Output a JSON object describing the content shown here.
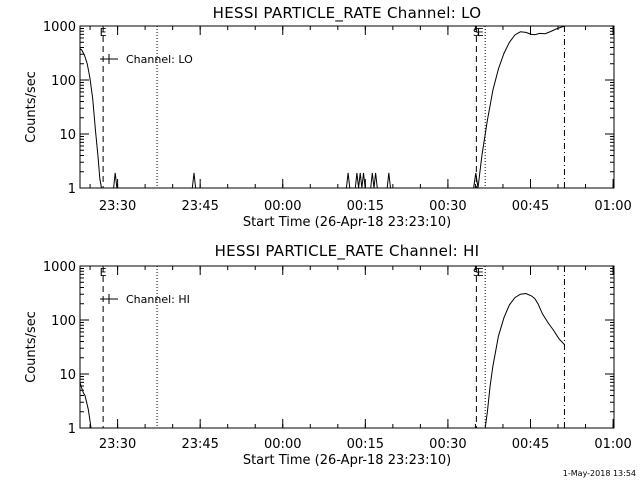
{
  "footer": {
    "timestamp": "1-May-2018 13:54"
  },
  "chart_data": [
    {
      "type": "line",
      "title": "HESSI PARTICLE_RATE Channel: LO",
      "xlabel": "Start Time (26-Apr-18 23:23:10)",
      "ylabel": "Counts/sec",
      "x_unit": "minutes after 23:23:10",
      "xlim": [
        0,
        97
      ],
      "ylim": [
        1,
        1000
      ],
      "y_scale": "log",
      "x_ticks": [
        {
          "x": 6.83,
          "label": "23:30"
        },
        {
          "x": 21.83,
          "label": "23:45"
        },
        {
          "x": 36.83,
          "label": "00:00"
        },
        {
          "x": 51.83,
          "label": "00:15"
        },
        {
          "x": 66.83,
          "label": "00:30"
        },
        {
          "x": 81.83,
          "label": "00:45"
        },
        {
          "x": 96.83,
          "label": "01:00"
        }
      ],
      "y_ticks": [
        {
          "y": 1,
          "label": "1"
        },
        {
          "y": 10,
          "label": "10"
        },
        {
          "y": 100,
          "label": "100"
        },
        {
          "y": 1000,
          "label": "1000"
        }
      ],
      "legend": {
        "label": "Channel: LO",
        "placement": "top-left"
      },
      "markers": [
        {
          "x": 4.2,
          "style": "dashed",
          "label": "E"
        },
        {
          "x": 14.0,
          "style": "dotted",
          "label": ""
        },
        {
          "x": 72.0,
          "style": "dashed",
          "label": "S"
        },
        {
          "x": 73.6,
          "style": "dotted",
          "label": "E"
        },
        {
          "x": 88.0,
          "style": "dashdot",
          "label": ""
        }
      ],
      "series": [
        {
          "x": [
            0,
            0.3,
            0.8,
            1.3,
            1.8,
            2.3,
            2.8,
            3.3,
            3.6,
            3.9
          ],
          "y": [
            380,
            360,
            290,
            200,
            110,
            45,
            12,
            3.5,
            1.5,
            1
          ]
        },
        {
          "x": [
            6.1,
            6.4,
            6.7
          ],
          "y": [
            1,
            1.9,
            1
          ]
        },
        {
          "x": [
            20.4,
            20.7,
            21.0
          ],
          "y": [
            1,
            1.9,
            1
          ]
        },
        {
          "x": [
            48.4,
            48.7,
            49.0
          ],
          "y": [
            1,
            1.9,
            1
          ]
        },
        {
          "x": [
            50.0,
            50.3,
            50.6,
            50.9,
            51.2,
            51.5,
            51.8
          ],
          "y": [
            1,
            1.9,
            1,
            1.9,
            1,
            1.9,
            1
          ]
        },
        {
          "x": [
            52.8,
            53.1,
            53.4,
            53.7,
            54.0
          ],
          "y": [
            1,
            1.9,
            1,
            1.9,
            1
          ]
        },
        {
          "x": [
            55.8,
            56.1,
            56.4
          ],
          "y": [
            1,
            1.9,
            1
          ]
        },
        {
          "x": [
            71.5,
            71.9,
            72.3
          ],
          "y": [
            1,
            1.9,
            1
          ]
        },
        {
          "x": [
            72.3,
            73.0,
            74.0,
            75.0,
            76.0,
            77.0,
            78.0,
            79.0,
            80.0,
            81.0,
            82.0,
            82.6,
            83.5,
            84.5,
            85.5,
            86.5,
            87.5,
            88.2
          ],
          "y": [
            1,
            4,
            18,
            65,
            160,
            310,
            500,
            680,
            780,
            760,
            700,
            690,
            730,
            720,
            790,
            880,
            960,
            1000
          ]
        }
      ]
    },
    {
      "type": "line",
      "title": "HESSI PARTICLE_RATE Channel: HI",
      "xlabel": "Start Time (26-Apr-18 23:23:10)",
      "ylabel": "Counts/sec",
      "x_unit": "minutes after 23:23:10",
      "xlim": [
        0,
        97
      ],
      "ylim": [
        1,
        1000
      ],
      "y_scale": "log",
      "x_ticks": [
        {
          "x": 6.83,
          "label": "23:30"
        },
        {
          "x": 21.83,
          "label": "23:45"
        },
        {
          "x": 36.83,
          "label": "00:00"
        },
        {
          "x": 51.83,
          "label": "00:15"
        },
        {
          "x": 66.83,
          "label": "00:30"
        },
        {
          "x": 81.83,
          "label": "00:45"
        },
        {
          "x": 96.83,
          "label": "01:00"
        }
      ],
      "y_ticks": [
        {
          "y": 1,
          "label": "1"
        },
        {
          "y": 10,
          "label": "10"
        },
        {
          "y": 100,
          "label": "100"
        },
        {
          "y": 1000,
          "label": "1000"
        }
      ],
      "legend": {
        "label": "Channel: HI",
        "placement": "top-left"
      },
      "markers": [
        {
          "x": 4.2,
          "style": "dashed",
          "label": "E"
        },
        {
          "x": 14.0,
          "style": "dotted",
          "label": ""
        },
        {
          "x": 72.0,
          "style": "dashed",
          "label": "S"
        },
        {
          "x": 73.6,
          "style": "dotted",
          "label": "E"
        },
        {
          "x": 88.0,
          "style": "dashdot",
          "label": ""
        }
      ],
      "series": [
        {
          "x": [
            0,
            0.3,
            0.6,
            0.9,
            1.2,
            1.5,
            1.8,
            2.0
          ],
          "y": [
            7,
            5.5,
            4.5,
            4,
            3,
            2.2,
            1.4,
            1
          ]
        },
        {
          "x": [
            73.6,
            74.0,
            74.5,
            75.0,
            76.0,
            77.0,
            78.0,
            79.0,
            80.0,
            81.0,
            82.0,
            82.6,
            83.2,
            84.0,
            85.0,
            86.0,
            87.0,
            88.0
          ],
          "y": [
            1,
            2,
            6,
            14,
            50,
            110,
            190,
            260,
            300,
            310,
            280,
            250,
            200,
            130,
            90,
            65,
            45,
            35
          ]
        }
      ]
    }
  ]
}
